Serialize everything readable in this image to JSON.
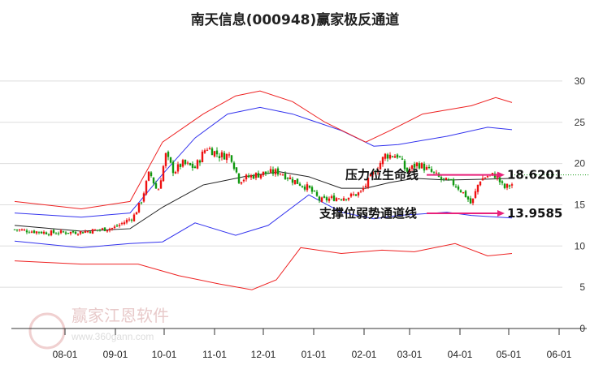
{
  "chart_data": {
    "type": "candlestick",
    "title": "南天信息(000948)赢家极反通道",
    "xlabel": "",
    "ylabel": "",
    "ylim": [
      0,
      30
    ],
    "yticks": [
      0,
      5,
      10,
      15,
      20,
      25,
      30
    ],
    "x_unit": "days since 08-01",
    "xticks": [
      {
        "label": "08-01",
        "day": 0
      },
      {
        "label": "09-01",
        "day": 31
      },
      {
        "label": "10-01",
        "day": 61
      },
      {
        "label": "11-01",
        "day": 92
      },
      {
        "label": "12-01",
        "day": 122
      },
      {
        "label": "01-01",
        "day": 153
      },
      {
        "label": "02-01",
        "day": 184
      },
      {
        "label": "03-01",
        "day": 212
      },
      {
        "label": "04-01",
        "day": 243
      },
      {
        "label": "05-01",
        "day": 273
      },
      {
        "label": "06-01",
        "day": 304
      }
    ],
    "grid": true,
    "price_close_keypoints": [
      [
        -31,
        12.0
      ],
      [
        -10,
        11.6
      ],
      [
        10,
        11.7
      ],
      [
        30,
        12.2
      ],
      [
        42,
        13.5
      ],
      [
        47,
        15.5
      ],
      [
        52,
        19
      ],
      [
        57,
        16.5
      ],
      [
        62,
        21
      ],
      [
        67,
        19
      ],
      [
        72,
        20
      ],
      [
        80,
        19.5
      ],
      [
        87,
        22
      ],
      [
        95,
        21
      ],
      [
        102,
        21
      ],
      [
        107,
        18
      ],
      [
        115,
        18.5
      ],
      [
        122,
        18.8
      ],
      [
        132,
        19
      ],
      [
        140,
        18
      ],
      [
        150,
        17
      ],
      [
        157,
        15.5
      ],
      [
        165,
        15.8
      ],
      [
        175,
        16
      ],
      [
        182,
        16.5
      ],
      [
        187,
        18
      ],
      [
        192,
        19.5
      ],
      [
        197,
        21
      ],
      [
        205,
        21
      ],
      [
        210,
        19
      ],
      [
        217,
        20
      ],
      [
        225,
        19
      ],
      [
        232,
        18
      ],
      [
        240,
        17.5
      ],
      [
        247,
        16
      ],
      [
        250,
        15
      ],
      [
        255,
        18
      ],
      [
        260,
        18.5
      ],
      [
        265,
        18.6
      ],
      [
        270,
        17
      ],
      [
        275,
        17.5
      ]
    ],
    "series": [
      {
        "name": "middle-ma",
        "color": "#222222",
        "points": [
          [
            -31,
            12.5
          ],
          [
            10,
            11.8
          ],
          [
            40,
            12.1
          ],
          [
            60,
            14.7
          ],
          [
            85,
            17.4
          ],
          [
            110,
            18.4
          ],
          [
            132,
            19
          ],
          [
            150,
            18.4
          ],
          [
            170,
            17
          ],
          [
            185,
            17
          ],
          [
            200,
            17.7
          ],
          [
            215,
            18.2
          ],
          [
            235,
            18
          ],
          [
            260,
            18.1
          ],
          [
            275,
            18.2
          ]
        ]
      },
      {
        "name": "blue-upper",
        "color": "#3333ee",
        "points": [
          [
            -31,
            14
          ],
          [
            10,
            13.5
          ],
          [
            40,
            14
          ],
          [
            60,
            18.7
          ],
          [
            80,
            23.1
          ],
          [
            100,
            26
          ],
          [
            120,
            26.8
          ],
          [
            140,
            26
          ],
          [
            170,
            24
          ],
          [
            190,
            22.1
          ],
          [
            205,
            22.3
          ],
          [
            235,
            23.3
          ],
          [
            260,
            24.4
          ],
          [
            275,
            24.1
          ]
        ]
      },
      {
        "name": "blue-lower",
        "color": "#3333ee",
        "points": [
          [
            -31,
            10.6
          ],
          [
            10,
            9.8
          ],
          [
            40,
            10.3
          ],
          [
            60,
            10.5
          ],
          [
            80,
            12.8
          ],
          [
            105,
            11.3
          ],
          [
            125,
            12.5
          ],
          [
            150,
            16.2
          ],
          [
            170,
            14.1
          ],
          [
            190,
            13.3
          ],
          [
            205,
            13.7
          ],
          [
            235,
            14.1
          ],
          [
            250,
            13.7
          ],
          [
            275,
            13.4
          ]
        ]
      },
      {
        "name": "red-upper",
        "color": "#ee2222",
        "points": [
          [
            -31,
            15.4
          ],
          [
            10,
            14.5
          ],
          [
            40,
            15.4
          ],
          [
            60,
            22.6
          ],
          [
            85,
            26
          ],
          [
            105,
            28.2
          ],
          [
            120,
            28.8
          ],
          [
            140,
            27.5
          ],
          [
            160,
            25
          ],
          [
            185,
            22.6
          ],
          [
            200,
            24
          ],
          [
            220,
            26
          ],
          [
            250,
            27
          ],
          [
            265,
            28
          ],
          [
            275,
            27.4
          ]
        ]
      },
      {
        "name": "red-lower",
        "color": "#ee2222",
        "points": [
          [
            -31,
            8.2
          ],
          [
            10,
            7.8
          ],
          [
            45,
            7.8
          ],
          [
            70,
            6.4
          ],
          [
            95,
            5.4
          ],
          [
            115,
            4.7
          ],
          [
            130,
            5.9
          ],
          [
            145,
            9.8
          ],
          [
            170,
            9.1
          ],
          [
            195,
            9.5
          ],
          [
            215,
            9.3
          ],
          [
            240,
            10.3
          ],
          [
            260,
            8.8
          ],
          [
            275,
            9.1
          ]
        ]
      }
    ],
    "annotations": [
      {
        "label": "压力位生命线",
        "value": "18.6201",
        "level": 18.6201,
        "color": "#e8217a"
      },
      {
        "label": "支撑位弱势通道线",
        "value": "13.9585",
        "level": 13.9585,
        "color": "#e8217a"
      }
    ],
    "colors": {
      "up": "#ee1111",
      "down": "#119911",
      "grid": "#dddddd",
      "dotted": "#119911"
    }
  },
  "watermark": {
    "logo_text": "江恩赢家",
    "name": "赢家江恩软件",
    "url": "www.360gann.com"
  }
}
